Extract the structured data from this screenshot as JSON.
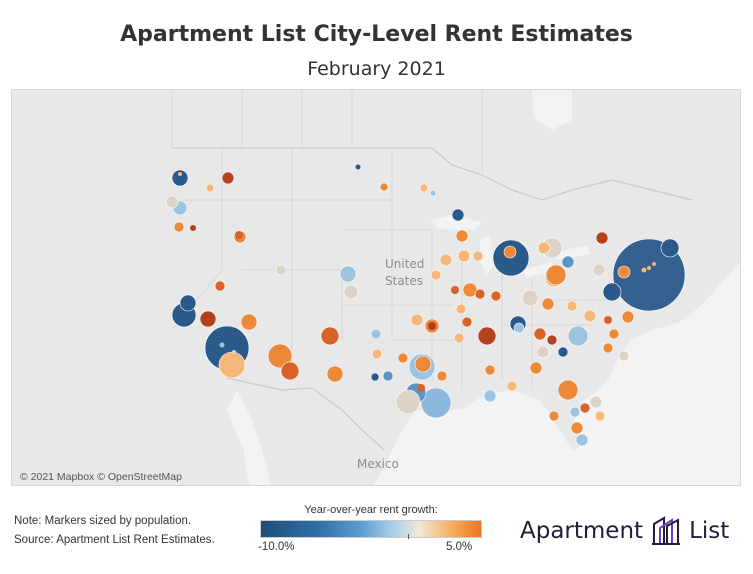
{
  "title": "Apartment List City-Level Rent Estimates",
  "subtitle": "February 2021",
  "map": {
    "labels": {
      "us_line1": "United",
      "us_line2": "States",
      "mexico": "Mexico"
    },
    "attribution": "© 2021 Mapbox © OpenStreetMap"
  },
  "notes": {
    "line1": "Note: Markers sized by population.",
    "line2": "Source: Apartment List Rent Estimates."
  },
  "legend": {
    "title": "Year-over-year rent growth:",
    "min_label": "-10.0%",
    "max_label": "5.0%",
    "min_value": -10.0,
    "max_value": 5.0
  },
  "brand": {
    "word1": "Apartment",
    "word2": "List"
  },
  "colors": {
    "dark_blue": "#2a5a8a",
    "mid_blue": "#5b95c6",
    "light_blue": "#9cc3e0",
    "neutral": "#dcd3c6",
    "light_orange": "#f6b77a",
    "orange": "#ec8a3a",
    "dark_orange": "#d9622a",
    "red_brown": "#b3431f",
    "brand_purple": "#6b3fb8"
  }
}
